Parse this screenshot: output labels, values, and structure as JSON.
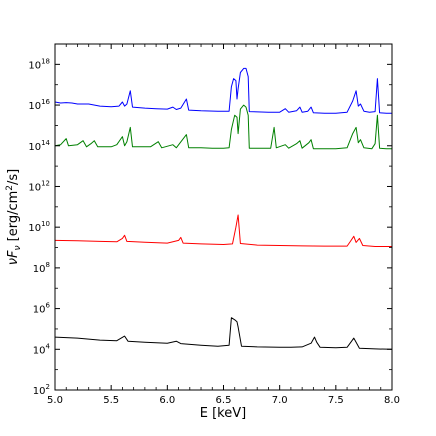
{
  "chart_data": {
    "type": "line",
    "title": "",
    "xlabel": "E [keV]",
    "ylabel_parts": {
      "nu": "ν",
      "F": "F",
      "sub": "ν",
      "units_a": " [erg/cm",
      "sup": "2",
      "units_b": "/s]"
    },
    "xlim": [
      5.0,
      8.0
    ],
    "ylim_log10": [
      2,
      19
    ],
    "yscale": "log",
    "grid": false,
    "x_ticks": [
      {
        "value": 5.0,
        "label": "5.0"
      },
      {
        "value": 5.5,
        "label": "5.5"
      },
      {
        "value": 6.0,
        "label": "6.0"
      },
      {
        "value": 6.5,
        "label": "6.5"
      },
      {
        "value": 7.0,
        "label": "7.0"
      },
      {
        "value": 7.5,
        "label": "7.5"
      },
      {
        "value": 8.0,
        "label": "8.0"
      }
    ],
    "y_ticks": [
      {
        "exp": 2,
        "base": "10",
        "sup": "2"
      },
      {
        "exp": 4,
        "base": "10",
        "sup": "4"
      },
      {
        "exp": 6,
        "base": "10",
        "sup": "6"
      },
      {
        "exp": 8,
        "base": "10",
        "sup": "8"
      },
      {
        "exp": 10,
        "base": "10",
        "sup": "10"
      },
      {
        "exp": 12,
        "base": "10",
        "sup": "12"
      },
      {
        "exp": 14,
        "base": "10",
        "sup": "14"
      },
      {
        "exp": 16,
        "base": "10",
        "sup": "16"
      },
      {
        "exp": 18,
        "base": "10",
        "sup": "18"
      }
    ],
    "series": [
      {
        "color": "#0000ff",
        "points": [
          [
            5.0,
            16.15
          ],
          [
            5.05,
            16.1
          ],
          [
            5.1,
            16.12
          ],
          [
            5.15,
            16.1
          ],
          [
            5.2,
            16.05
          ],
          [
            5.3,
            16.05
          ],
          [
            5.4,
            15.95
          ],
          [
            5.5,
            15.92
          ],
          [
            5.57,
            15.95
          ],
          [
            5.6,
            16.15
          ],
          [
            5.62,
            15.95
          ],
          [
            5.64,
            16.05
          ],
          [
            5.67,
            16.7
          ],
          [
            5.69,
            15.9
          ],
          [
            5.8,
            15.85
          ],
          [
            5.9,
            15.82
          ],
          [
            6.0,
            15.8
          ],
          [
            6.05,
            15.9
          ],
          [
            6.08,
            15.78
          ],
          [
            6.12,
            15.85
          ],
          [
            6.17,
            16.3
          ],
          [
            6.19,
            15.75
          ],
          [
            6.3,
            15.72
          ],
          [
            6.45,
            15.7
          ],
          [
            6.55,
            15.7
          ],
          [
            6.57,
            16.9
          ],
          [
            6.59,
            17.3
          ],
          [
            6.61,
            17.2
          ],
          [
            6.62,
            16.3
          ],
          [
            6.63,
            16.8
          ],
          [
            6.65,
            17.6
          ],
          [
            6.68,
            17.8
          ],
          [
            6.7,
            17.8
          ],
          [
            6.72,
            17.4
          ],
          [
            6.73,
            15.68
          ],
          [
            6.9,
            15.65
          ],
          [
            7.0,
            15.65
          ],
          [
            7.05,
            15.82
          ],
          [
            7.08,
            15.65
          ],
          [
            7.15,
            15.72
          ],
          [
            7.18,
            15.9
          ],
          [
            7.2,
            15.65
          ],
          [
            7.25,
            15.7
          ],
          [
            7.28,
            15.9
          ],
          [
            7.3,
            15.62
          ],
          [
            7.4,
            15.6
          ],
          [
            7.5,
            15.6
          ],
          [
            7.6,
            15.65
          ],
          [
            7.65,
            16.2
          ],
          [
            7.68,
            16.7
          ],
          [
            7.7,
            15.95
          ],
          [
            7.72,
            16.05
          ],
          [
            7.75,
            15.7
          ],
          [
            7.8,
            15.65
          ],
          [
            7.85,
            15.68
          ],
          [
            7.87,
            17.3
          ],
          [
            7.89,
            15.62
          ],
          [
            7.95,
            15.6
          ],
          [
            8.0,
            15.6
          ]
        ]
      },
      {
        "color": "#008000",
        "points": [
          [
            5.0,
            14.0
          ],
          [
            5.05,
            14.05
          ],
          [
            5.1,
            14.35
          ],
          [
            5.12,
            14.0
          ],
          [
            5.2,
            14.05
          ],
          [
            5.25,
            14.25
          ],
          [
            5.28,
            13.95
          ],
          [
            5.32,
            14.1
          ],
          [
            5.35,
            14.25
          ],
          [
            5.38,
            13.95
          ],
          [
            5.45,
            13.95
          ],
          [
            5.5,
            13.95
          ],
          [
            5.55,
            14.05
          ],
          [
            5.6,
            14.45
          ],
          [
            5.62,
            14.0
          ],
          [
            5.64,
            14.2
          ],
          [
            5.67,
            14.9
          ],
          [
            5.69,
            13.95
          ],
          [
            5.75,
            13.95
          ],
          [
            5.85,
            13.95
          ],
          [
            5.92,
            14.2
          ],
          [
            5.95,
            13.9
          ],
          [
            6.05,
            14.05
          ],
          [
            6.08,
            13.9
          ],
          [
            6.17,
            14.55
          ],
          [
            6.19,
            13.9
          ],
          [
            6.3,
            13.9
          ],
          [
            6.4,
            13.88
          ],
          [
            6.5,
            13.88
          ],
          [
            6.55,
            13.9
          ],
          [
            6.57,
            14.8
          ],
          [
            6.6,
            15.5
          ],
          [
            6.62,
            15.4
          ],
          [
            6.63,
            14.6
          ],
          [
            6.65,
            15.8
          ],
          [
            6.68,
            16.0
          ],
          [
            6.7,
            15.9
          ],
          [
            6.72,
            15.5
          ],
          [
            6.73,
            13.88
          ],
          [
            6.85,
            13.88
          ],
          [
            6.92,
            13.88
          ],
          [
            6.95,
            14.9
          ],
          [
            6.97,
            13.9
          ],
          [
            7.05,
            14.05
          ],
          [
            7.08,
            13.88
          ],
          [
            7.15,
            14.1
          ],
          [
            7.18,
            14.25
          ],
          [
            7.2,
            13.88
          ],
          [
            7.26,
            14.15
          ],
          [
            7.28,
            14.3
          ],
          [
            7.3,
            13.85
          ],
          [
            7.4,
            13.85
          ],
          [
            7.5,
            13.85
          ],
          [
            7.6,
            13.9
          ],
          [
            7.65,
            14.6
          ],
          [
            7.68,
            14.9
          ],
          [
            7.7,
            14.15
          ],
          [
            7.72,
            14.3
          ],
          [
            7.75,
            13.9
          ],
          [
            7.82,
            13.85
          ],
          [
            7.85,
            14.1
          ],
          [
            7.87,
            15.5
          ],
          [
            7.89,
            13.88
          ],
          [
            7.95,
            13.85
          ],
          [
            8.0,
            13.85
          ]
        ]
      },
      {
        "color": "#ff0000",
        "points": [
          [
            5.0,
            9.35
          ],
          [
            5.2,
            9.33
          ],
          [
            5.4,
            9.3
          ],
          [
            5.55,
            9.28
          ],
          [
            5.6,
            9.45
          ],
          [
            5.62,
            9.6
          ],
          [
            5.64,
            9.3
          ],
          [
            5.8,
            9.26
          ],
          [
            6.0,
            9.22
          ],
          [
            6.1,
            9.35
          ],
          [
            6.12,
            9.5
          ],
          [
            6.14,
            9.22
          ],
          [
            6.3,
            9.18
          ],
          [
            6.5,
            9.15
          ],
          [
            6.58,
            9.18
          ],
          [
            6.61,
            10.0
          ],
          [
            6.63,
            10.6
          ],
          [
            6.65,
            9.2
          ],
          [
            6.8,
            9.12
          ],
          [
            7.0,
            9.1
          ],
          [
            7.2,
            9.08
          ],
          [
            7.4,
            9.07
          ],
          [
            7.6,
            9.07
          ],
          [
            7.63,
            9.3
          ],
          [
            7.66,
            9.55
          ],
          [
            7.68,
            9.25
          ],
          [
            7.71,
            9.45
          ],
          [
            7.74,
            9.1
          ],
          [
            7.85,
            9.05
          ],
          [
            8.0,
            9.05
          ]
        ]
      },
      {
        "color": "#000000",
        "points": [
          [
            5.0,
            4.6
          ],
          [
            5.2,
            4.55
          ],
          [
            5.4,
            4.45
          ],
          [
            5.55,
            4.42
          ],
          [
            5.62,
            4.65
          ],
          [
            5.65,
            4.4
          ],
          [
            5.8,
            4.35
          ],
          [
            6.0,
            4.3
          ],
          [
            6.08,
            4.4
          ],
          [
            6.12,
            4.28
          ],
          [
            6.3,
            4.2
          ],
          [
            6.45,
            4.15
          ],
          [
            6.55,
            4.2
          ],
          [
            6.57,
            5.55
          ],
          [
            6.6,
            5.45
          ],
          [
            6.62,
            5.35
          ],
          [
            6.63,
            5.1
          ],
          [
            6.66,
            4.15
          ],
          [
            6.8,
            4.12
          ],
          [
            7.0,
            4.1
          ],
          [
            7.1,
            4.1
          ],
          [
            7.2,
            4.12
          ],
          [
            7.28,
            4.3
          ],
          [
            7.31,
            4.6
          ],
          [
            7.33,
            4.35
          ],
          [
            7.36,
            4.1
          ],
          [
            7.5,
            4.08
          ],
          [
            7.6,
            4.1
          ],
          [
            7.64,
            4.4
          ],
          [
            7.66,
            4.55
          ],
          [
            7.68,
            4.35
          ],
          [
            7.71,
            4.05
          ],
          [
            7.85,
            4.02
          ],
          [
            8.0,
            4.0
          ]
        ]
      }
    ]
  }
}
